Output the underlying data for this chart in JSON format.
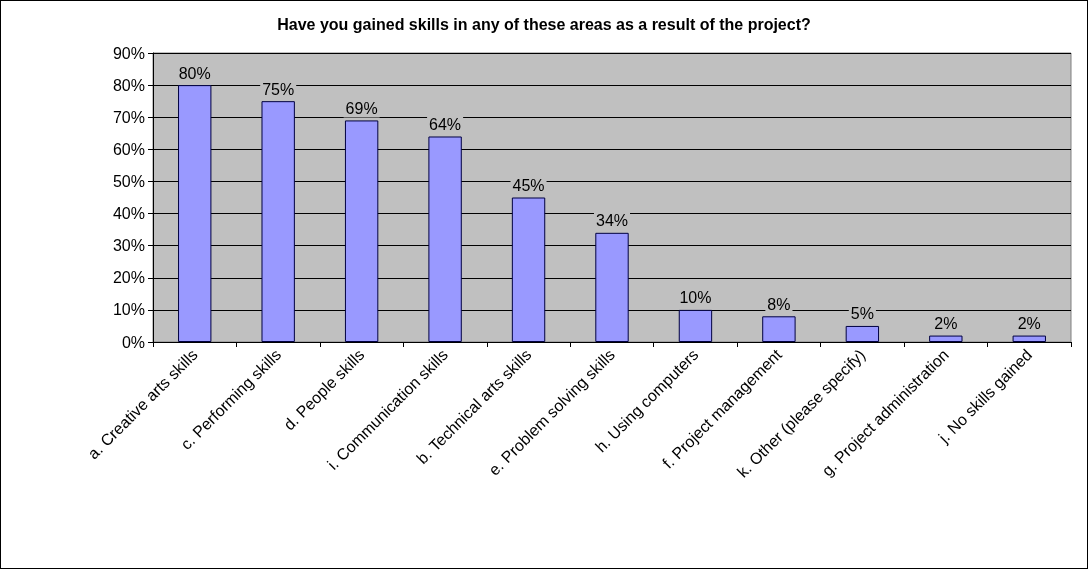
{
  "chart_data": {
    "type": "bar",
    "title": "Have you gained skills in any of these areas as a result of the project?",
    "categories": [
      "a. Creative arts skills",
      "c. Performing skills",
      "d. People skills",
      "i. Communication skills",
      "b. Technical arts skills",
      "e. Problem solving skills",
      "h. Using computers",
      "f. Project management",
      "k. Other (please specify)",
      "g. Project administration",
      "j. No skills gained"
    ],
    "values": [
      80,
      75,
      69,
      64,
      45,
      34,
      10,
      8,
      5,
      2,
      2
    ],
    "value_labels": [
      "80%",
      "75%",
      "69%",
      "64%",
      "45%",
      "34%",
      "10%",
      "8%",
      "5%",
      "2%",
      "2%"
    ],
    "color": "#9999ff",
    "ylim": [
      0,
      90
    ],
    "yticks": [
      {
        "value": 0,
        "label": "0%"
      },
      {
        "value": 10,
        "label": "10%"
      },
      {
        "value": 20,
        "label": "20%"
      },
      {
        "value": 30,
        "label": "30%"
      },
      {
        "value": 40,
        "label": "40%"
      },
      {
        "value": 50,
        "label": "50%"
      },
      {
        "value": 60,
        "label": "60%"
      },
      {
        "value": 70,
        "label": "70%"
      },
      {
        "value": 80,
        "label": "80%"
      },
      {
        "value": 90,
        "label": "90%"
      }
    ],
    "grid": "y"
  }
}
